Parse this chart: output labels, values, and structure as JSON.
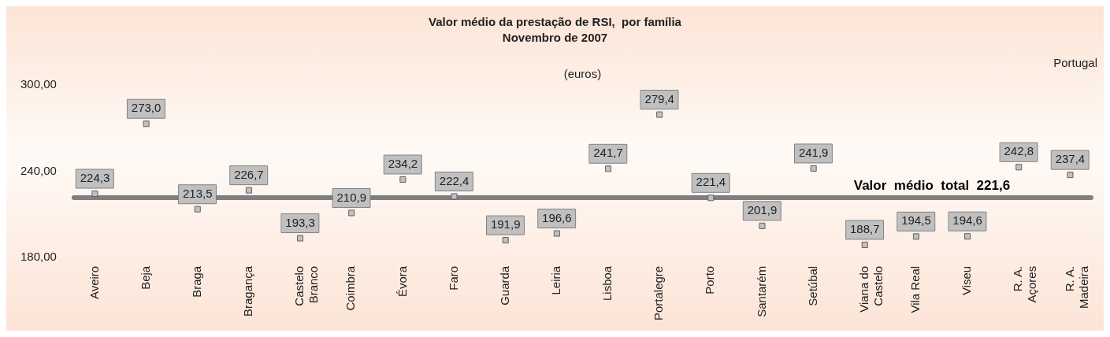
{
  "chart_data": {
    "type": "scatter",
    "title": "Valor médio da prestação de RSI,  por família",
    "subtitle": "Novembro de 2007",
    "annotations": [
      "(euros)",
      "Portugal"
    ],
    "categories": [
      "Aveiro",
      "Beja",
      "Braga",
      "Bragança",
      "Castelo Branco",
      "Coimbra",
      "Évora",
      "Faro",
      "Guarda",
      "Leiria",
      "Lisboa",
      "Portalegre",
      "Porto",
      "Santarém",
      "Setúbal",
      "Viana do Castelo",
      "Vila Real",
      "Viseu",
      "R. A. Açores",
      "R. A. Madeira"
    ],
    "series": [
      {
        "color": "#c0c0c0",
        "values": [
          224.3,
          273.0,
          213.5,
          226.7,
          193.3,
          210.9,
          234.2,
          222.4,
          191.9,
          196.6,
          241.7,
          279.4,
          221.4,
          201.9,
          241.9,
          188.7,
          194.5,
          194.6,
          242.8,
          237.4
        ],
        "value_labels": [
          "224,3",
          "273,0",
          "213,5",
          "226,7",
          "193,3",
          "210,9",
          "234,2",
          "222,4",
          "191,9",
          "196,6",
          "241,7",
          "279,4",
          "221,4",
          "201,9",
          "241,9",
          "188,7",
          "194,5",
          "194,6",
          "242,8",
          "237,4"
        ]
      }
    ],
    "ylim": [
      180,
      300
    ],
    "yticks": [
      {
        "value": 180,
        "label": "180,00"
      },
      {
        "value": 240,
        "label": "240,00"
      },
      {
        "value": 300,
        "label": "300,00"
      }
    ],
    "ref_lines": [
      {
        "axis": "y",
        "value": 221.6,
        "label": "Valor médio total  221,6",
        "color": "#7f7f7f"
      }
    ],
    "marker": "square",
    "grid": false,
    "legend": false
  }
}
